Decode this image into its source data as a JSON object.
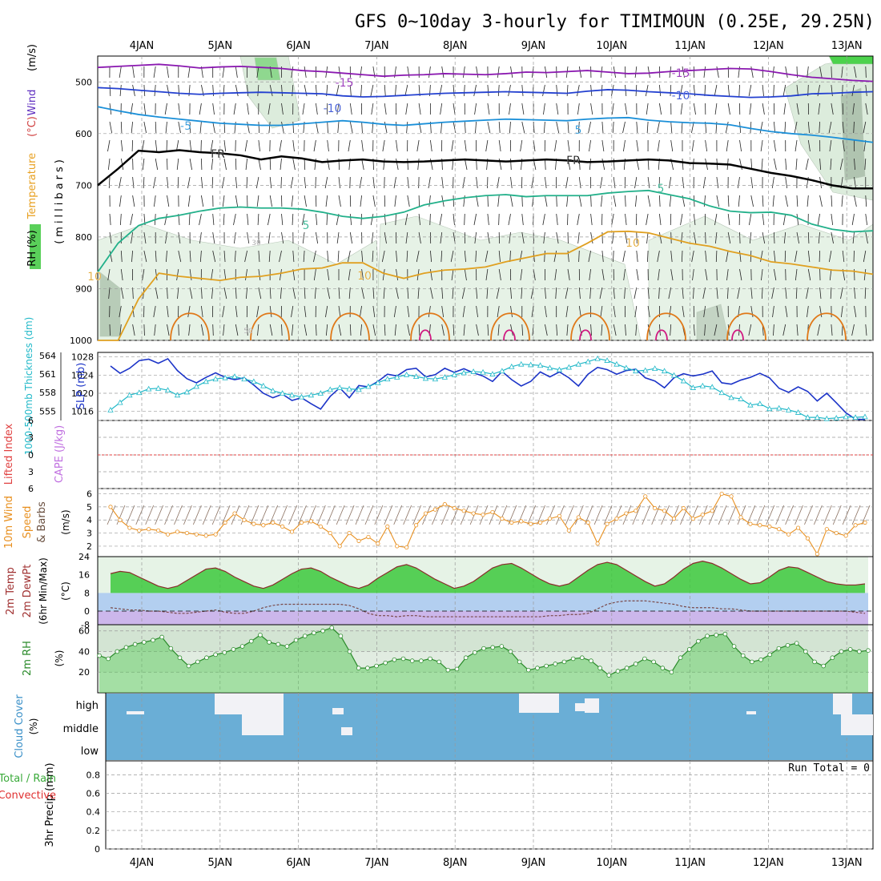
{
  "title": "GFS 0~10day 3-hourly for TIMIMOUN (0.25E, 29.25N)",
  "dates": [
    "4JAN",
    "5JAN",
    "6JAN",
    "7JAN",
    "8JAN",
    "9JAN",
    "10JAN",
    "11JAN",
    "12JAN",
    "13JAN"
  ],
  "run_total": "Run Total = 0",
  "colors": {
    "t_minus15": "#8a18b0",
    "t_minus10": "#2340d0",
    "t_minus5": "#1a8fd8",
    "freezing": "#000000",
    "t_plus5": "#22b08a",
    "t_plus10": "#e0a020",
    "t_plus15": "#e07818",
    "t_plus20": "#d01880",
    "slp": "#1c34c8",
    "thickness": "#20b8c8",
    "wind10m": "#e89020",
    "rh": "#2a8a2a",
    "cloud": "#6aaed6",
    "grid": "#9a9a9a"
  },
  "chart_data": [
    {
      "type": "line",
      "panel": "upper-air",
      "ylabel_parts": [
        "RH (%)",
        "Temperature",
        "(°C)",
        "Wind",
        "(m/s)"
      ],
      "ylabel_right": "(millibars)",
      "y_ticks": [
        500,
        600,
        700,
        800,
        900,
        1000
      ],
      "ylim": [
        1000,
        450
      ],
      "contour_labels": [
        "-15",
        "-15",
        "-10",
        "-10",
        "-5",
        "5",
        "FR",
        "FR",
        "5",
        "5",
        "10",
        "10",
        "10",
        "30",
        "50"
      ],
      "series": [
        {
          "name": "-15",
          "values": [
            472,
            470,
            468,
            466,
            469,
            473,
            471,
            470,
            472,
            474,
            478,
            480,
            483,
            486,
            489,
            487,
            486,
            484,
            485,
            486,
            484,
            481,
            482,
            480,
            478,
            481,
            484,
            483,
            480,
            478,
            476,
            474,
            475,
            480,
            486,
            491,
            494,
            497,
            499
          ]
        },
        {
          "name": "-10",
          "values": [
            511,
            513,
            516,
            519,
            522,
            524,
            522,
            521,
            520,
            521,
            522,
            523,
            527,
            529,
            528,
            526,
            524,
            522,
            521,
            520,
            519,
            520,
            521,
            522,
            518,
            515,
            516,
            519,
            521,
            523,
            526,
            528,
            530,
            529,
            527,
            523,
            522,
            520,
            519
          ]
        },
        {
          "name": "-5",
          "values": [
            548,
            556,
            563,
            568,
            572,
            576,
            580,
            582,
            584,
            584,
            581,
            578,
            575,
            578,
            582,
            584,
            581,
            578,
            576,
            574,
            572,
            573,
            574,
            575,
            572,
            570,
            569,
            574,
            577,
            579,
            580,
            583,
            590,
            596,
            600,
            603,
            607,
            612,
            617
          ]
        },
        {
          "name": "FR",
          "values": [
            700,
            668,
            633,
            636,
            632,
            636,
            638,
            642,
            650,
            644,
            648,
            655,
            652,
            650,
            654,
            655,
            654,
            652,
            650,
            652,
            654,
            652,
            650,
            652,
            655,
            654,
            652,
            650,
            652,
            657,
            658,
            660,
            668,
            676,
            682,
            690,
            700,
            706,
            706
          ]
        },
        {
          "name": "5",
          "values": [
            868,
            812,
            778,
            764,
            758,
            750,
            744,
            742,
            744,
            744,
            746,
            752,
            760,
            764,
            760,
            752,
            738,
            730,
            724,
            720,
            718,
            722,
            720,
            720,
            720,
            715,
            712,
            710,
            718,
            726,
            740,
            750,
            753,
            752,
            758,
            775,
            785,
            790,
            788
          ]
        },
        {
          "name": "10",
          "values": [
            1000,
            1000,
            920,
            870,
            876,
            880,
            884,
            878,
            876,
            870,
            862,
            860,
            850,
            850,
            870,
            880,
            870,
            864,
            862,
            858,
            848,
            840,
            832,
            832,
            812,
            790,
            789,
            792,
            802,
            812,
            818,
            828,
            836,
            848,
            852,
            858,
            864,
            866,
            872
          ]
        }
      ]
    },
    {
      "type": "line",
      "panel": "slp-thickness",
      "ylabel": "SLP (mb)",
      "ylabel2": "1000-500mb Thickness (dm)",
      "slp_ticks": [
        1016,
        1020,
        1024,
        1028
      ],
      "thickness_ticks": [
        555,
        558,
        561,
        564
      ],
      "slp_lim": [
        1014,
        1029
      ],
      "thickness_lim": [
        553.5,
        564.5
      ],
      "series": [
        {
          "name": "SLP",
          "values": [
            1026,
            1024.4,
            1025.5,
            1027.2,
            1027.5,
            1026.6,
            1027.6,
            1025.0,
            1023.2,
            1022.3,
            1023.5,
            1024.5,
            1023.5,
            1023.0,
            1023.4,
            1021.8,
            1020.0,
            1019.0,
            1019.8,
            1018.4,
            1019.0,
            1017.7,
            1016.5,
            1019.3,
            1021.2,
            1019.0,
            1021.7,
            1021.4,
            1022.6,
            1024.2,
            1023.8,
            1025.2,
            1025.5,
            1023.6,
            1024.1,
            1025.5,
            1024.6,
            1025.4,
            1024.5,
            1023.8,
            1022.6,
            1024.8,
            1023.0,
            1021.6,
            1022.6,
            1024.7,
            1023.6,
            1024.7,
            1023.4,
            1021.6,
            1024.2,
            1025.7,
            1025.2,
            1024.2,
            1025.0,
            1025.3,
            1023.4,
            1022.7,
            1021.2,
            1023.4,
            1024.3,
            1023.8,
            1024.2,
            1024.9,
            1022.3,
            1022.0,
            1022.9,
            1023.5,
            1024.4,
            1023.4,
            1021.1,
            1020.2,
            1021.4,
            1020.4,
            1018.3,
            1020.0,
            1017.9,
            1015.7,
            1014.3,
            1014.2
          ]
        },
        {
          "name": "Thickness",
          "values": [
            555.2,
            556.4,
            557.6,
            558.0,
            558.6,
            558.7,
            558.4,
            557.6,
            558.1,
            559.0,
            559.8,
            560.2,
            560.4,
            560.6,
            560.2,
            559.8,
            559.1,
            558.3,
            557.9,
            557.6,
            557.3,
            557.6,
            557.9,
            558.5,
            558.8,
            558.6,
            558.5,
            559.0,
            559.6,
            560.2,
            560.5,
            560.9,
            560.6,
            560.3,
            560.2,
            560.5,
            560.9,
            561.2,
            561.4,
            561.3,
            561.0,
            561.5,
            562.2,
            562.6,
            562.5,
            562.4,
            562.0,
            561.7,
            562.1,
            562.6,
            563.0,
            563.5,
            563.2,
            562.6,
            562.0,
            561.5,
            561.6,
            561.9,
            561.5,
            560.8,
            559.9,
            558.8,
            559.1,
            558.9,
            558.0,
            557.2,
            557.0,
            556.0,
            556.2,
            555.4,
            555.5,
            555.2,
            554.8,
            554.0,
            554.0,
            553.8,
            553.9,
            554.1,
            554.0,
            554.1
          ]
        }
      ]
    },
    {
      "type": "line",
      "panel": "stability",
      "ylabel": "Lifted Index",
      "ylabel2": "CAPE (J/kg)",
      "y_ticks": [
        "6",
        "3",
        "0",
        "3",
        "6"
      ],
      "series": []
    },
    {
      "type": "line",
      "panel": "wind10m",
      "ylabel": "10m Wind",
      "ylabel2": "Speed",
      "ylabel3": "& Barbs",
      "yunit": "(m/s)",
      "y_ticks": [
        2,
        3,
        4,
        5,
        6
      ],
      "ylim": [
        1.2,
        6.4
      ],
      "series": [
        {
          "name": "10m Wind Speed",
          "values": [
            5.0,
            4.0,
            3.4,
            3.2,
            3.3,
            3.2,
            2.9,
            3.1,
            3.0,
            2.9,
            2.8,
            2.9,
            3.8,
            4.5,
            4.0,
            3.7,
            3.6,
            3.8,
            3.5,
            3.1,
            3.8,
            3.9,
            3.5,
            3.0,
            2.0,
            3.0,
            2.4,
            2.7,
            2.2,
            3.5,
            2.0,
            1.9,
            3.6,
            4.5,
            4.8,
            5.2,
            4.9,
            4.7,
            4.5,
            4.4,
            4.6,
            4.1,
            3.8,
            3.9,
            3.7,
            3.8,
            4.1,
            4.3,
            3.2,
            4.2,
            3.8,
            2.2,
            3.7,
            4.1,
            4.5,
            4.7,
            5.8,
            4.9,
            4.7,
            4.1,
            4.9,
            4.1,
            4.4,
            4.7,
            6.0,
            5.8,
            4.2,
            3.7,
            3.6,
            3.5,
            3.3,
            2.9,
            3.4,
            2.6,
            1.4,
            3.3,
            3.0,
            2.8,
            3.6,
            3.8
          ]
        }
      ]
    },
    {
      "type": "area",
      "panel": "temp2m",
      "ylabel": "2m Temp",
      "ylabel2": "2m DewPt",
      "ylabel3": "(6hr Min/Max)",
      "yunit": "(°C)",
      "y_ticks": [
        24,
        16,
        8,
        0
      ],
      "y_tick_extra": "-8",
      "ylim": [
        -6,
        24
      ],
      "series": [
        {
          "name": "2m Temp",
          "values": [
            16.5,
            17.5,
            17,
            15,
            13,
            11,
            10,
            11,
            13.5,
            16,
            18.5,
            19,
            17.5,
            15,
            13,
            11,
            10,
            11.5,
            14,
            16.5,
            18.5,
            19,
            17.5,
            15,
            13,
            11,
            10,
            11.5,
            14.5,
            17,
            19.5,
            20.5,
            19,
            16.5,
            14,
            12,
            10,
            11,
            13,
            16,
            19,
            20.5,
            21,
            19,
            16.5,
            14,
            12,
            11,
            12,
            15,
            18,
            20.5,
            21.5,
            20.5,
            18,
            15.5,
            13,
            11,
            12,
            15,
            18.5,
            21,
            22,
            21,
            19,
            16.5,
            14,
            12,
            12.5,
            15,
            18,
            19.5,
            19,
            17,
            15,
            13,
            12,
            11.5,
            11.5,
            12
          ]
        },
        {
          "name": "2m DewPt",
          "values": [
            1.5,
            1,
            0.5,
            0.5,
            0,
            0,
            -0.5,
            -1,
            -1,
            -0.5,
            0,
            0.5,
            -0.5,
            -1,
            -1,
            0,
            1.5,
            2.5,
            3,
            3,
            3,
            3,
            3,
            3,
            3,
            2.5,
            1,
            -1,
            -2,
            -2,
            -2.5,
            -2,
            -2,
            -2.5,
            -2.5,
            -2.5,
            -2.5,
            -2.5,
            -2.5,
            -2.5,
            -2.5,
            -2.5,
            -2.5,
            -2.5,
            -2.5,
            -2.5,
            -2,
            -2,
            -1.5,
            -1.5,
            -1,
            1,
            3,
            4,
            4.5,
            4.5,
            4.5,
            4,
            3.5,
            3,
            2,
            1.5,
            1.5,
            1.5,
            1,
            1,
            0.5,
            0,
            0,
            0,
            0,
            0,
            0,
            0,
            0,
            0,
            0,
            0,
            -0.5,
            -1
          ]
        }
      ]
    },
    {
      "type": "area",
      "panel": "rh2m",
      "ylabel": "2m RH",
      "yunit": "(%)",
      "y_ticks": [
        20,
        40,
        60
      ],
      "ylim": [
        0,
        66
      ],
      "series": [
        {
          "name": "2m RH",
          "values": [
            36,
            33,
            40,
            44,
            47,
            49,
            51,
            54,
            43,
            34,
            26,
            30,
            34,
            37,
            39,
            42,
            45,
            50,
            56,
            49,
            47,
            45,
            51,
            55,
            58,
            60,
            63,
            55,
            40,
            24,
            24,
            26,
            29,
            32,
            33,
            31,
            31,
            33,
            30,
            22,
            23,
            34,
            39,
            43,
            44,
            45,
            40,
            30,
            22,
            24,
            26,
            28,
            30,
            33,
            34,
            31,
            24,
            17,
            21,
            24,
            28,
            33,
            30,
            24,
            20,
            34,
            42,
            50,
            55,
            56,
            57,
            45,
            36,
            30,
            32,
            37,
            43,
            46,
            48,
            40,
            30,
            26,
            34,
            40,
            42,
            40,
            41
          ]
        }
      ]
    },
    {
      "type": "heatmap",
      "panel": "cloud",
      "ylabel": "Cloud Cover",
      "yunit": "(%)",
      "rows": [
        "high",
        "middle",
        "low"
      ]
    },
    {
      "type": "bar",
      "panel": "precip",
      "ylabel": "3hr Precip (mm)",
      "legend": [
        "Total / Rain",
        "Convective"
      ],
      "y_ticks": [
        "0",
        "0.2",
        "0.4",
        "0.6",
        "0.8"
      ],
      "ylim": [
        0,
        0.95
      ],
      "values": []
    }
  ]
}
